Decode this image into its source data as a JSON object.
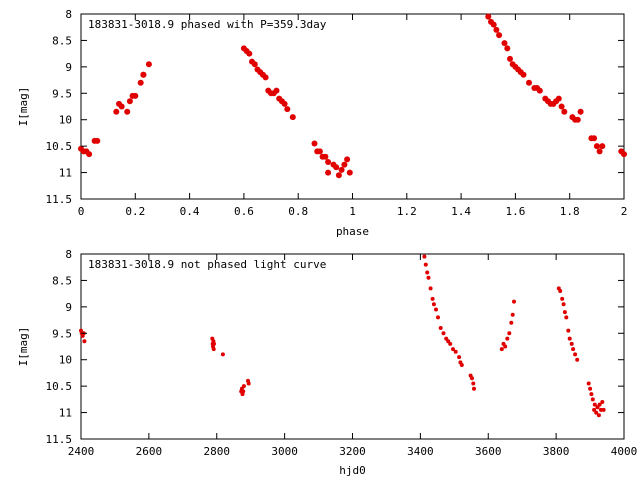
{
  "chart_data": [
    {
      "type": "scatter",
      "title": "183831-3018.9 phased with P=359.3day",
      "xlabel": "phase",
      "ylabel": "I[mag]",
      "xlim": [
        0,
        2
      ],
      "ylim": [
        11.5,
        8
      ],
      "y_inverted": true,
      "grid": false,
      "legend": "none",
      "marker_color": "#e00000",
      "xticks": [
        0,
        0.2,
        0.4,
        0.6,
        0.8,
        1,
        1.2,
        1.4,
        1.6,
        1.8,
        2
      ],
      "xtick_labels": [
        "0",
        "0.2",
        "0.4",
        "0.6",
        "0.8",
        "1",
        "1.2",
        "1.4",
        "1.6",
        "1.8",
        "2"
      ],
      "yticks": [
        8,
        8.5,
        9,
        9.5,
        10,
        10.5,
        11,
        11.5
      ],
      "ytick_labels": [
        "8",
        "8.5",
        "9",
        "9.5",
        "10",
        "10.5",
        "11",
        "11.5"
      ],
      "x": [
        0.0,
        0.01,
        0.02,
        0.03,
        0.05,
        0.06,
        0.13,
        0.14,
        0.15,
        0.17,
        0.18,
        0.19,
        0.2,
        0.22,
        0.23,
        0.23,
        0.25,
        0.6,
        0.61,
        0.62,
        0.63,
        0.64,
        0.65,
        0.66,
        0.67,
        0.68,
        0.69,
        0.7,
        0.71,
        0.72,
        0.73,
        0.74,
        0.75,
        0.76,
        0.78,
        0.86,
        0.87,
        0.88,
        0.89,
        0.9,
        0.91,
        0.91,
        0.93,
        0.94,
        0.95,
        0.96,
        0.97,
        0.98,
        0.99,
        1.5,
        1.51,
        1.52,
        1.53,
        1.54,
        1.56,
        1.57,
        1.58,
        1.59,
        1.6,
        1.61,
        1.62,
        1.63,
        1.65,
        1.67,
        1.68,
        1.69,
        1.71,
        1.72,
        1.73,
        1.74,
        1.75,
        1.76,
        1.77,
        1.78,
        1.81,
        1.82,
        1.83,
        1.84,
        1.88,
        1.89,
        1.9,
        1.91,
        1.92,
        1.99,
        2.0
      ],
      "y": [
        10.55,
        10.6,
        10.6,
        10.65,
        10.4,
        10.4,
        9.85,
        9.7,
        9.75,
        9.85,
        9.65,
        9.55,
        9.55,
        9.3,
        9.15,
        9.15,
        8.95,
        8.65,
        8.7,
        8.75,
        8.9,
        8.95,
        9.05,
        9.1,
        9.15,
        9.2,
        9.45,
        9.5,
        9.5,
        9.45,
        9.6,
        9.65,
        9.7,
        9.8,
        9.95,
        10.45,
        10.6,
        10.6,
        10.7,
        10.7,
        10.8,
        11.0,
        10.85,
        10.9,
        11.05,
        10.95,
        10.85,
        10.75,
        11.0,
        8.05,
        8.15,
        8.2,
        8.3,
        8.4,
        8.55,
        8.65,
        8.85,
        8.95,
        9.0,
        9.05,
        9.1,
        9.15,
        9.3,
        9.4,
        9.4,
        9.45,
        9.6,
        9.65,
        9.7,
        9.7,
        9.65,
        9.6,
        9.75,
        9.85,
        9.95,
        10.0,
        10.0,
        9.85,
        10.35,
        10.35,
        10.5,
        10.6,
        10.5,
        10.6,
        10.65
      ]
    },
    {
      "type": "scatter",
      "title": "183831-3018.9 not phased light curve",
      "xlabel": "hjd0",
      "ylabel": "I[mag]",
      "xlim": [
        2400,
        4000
      ],
      "ylim": [
        11.5,
        8
      ],
      "y_inverted": true,
      "grid": false,
      "legend": "none",
      "marker_color": "#e00000",
      "xticks": [
        2400,
        2600,
        2800,
        3000,
        3200,
        3400,
        3600,
        3800,
        4000
      ],
      "xtick_labels": [
        "2400",
        "2600",
        "2800",
        "3000",
        "3200",
        "3400",
        "3600",
        "3800",
        "4000"
      ],
      "yticks": [
        8,
        8.5,
        9,
        9.5,
        10,
        10.5,
        11,
        11.5
      ],
      "ytick_labels": [
        "8",
        "8.5",
        "9",
        "9.5",
        "10",
        "10.5",
        "11",
        "11.5"
      ],
      "x": [
        2400,
        2402,
        2405,
        2408,
        2410,
        2787,
        2788,
        2789,
        2790,
        2791,
        2792,
        2818,
        2872,
        2874,
        2876,
        2878,
        2880,
        2892,
        2894,
        3412,
        3416,
        3420,
        3424,
        3430,
        3436,
        3440,
        3446,
        3452,
        3460,
        3468,
        3476,
        3482,
        3488,
        3496,
        3504,
        3514,
        3518,
        3522,
        3548,
        3552,
        3556,
        3558,
        3640,
        3645,
        3650,
        3656,
        3662,
        3668,
        3672,
        3676,
        3808,
        3812,
        3818,
        3822,
        3826,
        3830,
        3836,
        3840,
        3846,
        3850,
        3856,
        3862,
        3896,
        3900,
        3904,
        3908,
        3912,
        3914,
        3918,
        3922,
        3926,
        3928,
        3932,
        3936,
        3940
      ],
      "y": [
        9.45,
        9.5,
        9.55,
        9.5,
        9.65,
        9.6,
        9.7,
        9.75,
        9.65,
        9.8,
        9.7,
        9.9,
        10.6,
        10.55,
        10.65,
        10.6,
        10.5,
        10.4,
        10.45,
        8.05,
        8.2,
        8.35,
        8.45,
        8.65,
        8.85,
        8.95,
        9.05,
        9.2,
        9.4,
        9.5,
        9.6,
        9.65,
        9.7,
        9.8,
        9.85,
        9.95,
        10.05,
        10.1,
        10.3,
        10.35,
        10.45,
        10.55,
        9.8,
        9.7,
        9.75,
        9.6,
        9.5,
        9.3,
        9.15,
        8.9,
        8.65,
        8.7,
        8.85,
        8.95,
        9.1,
        9.2,
        9.45,
        9.6,
        9.7,
        9.8,
        9.9,
        10.0,
        10.45,
        10.55,
        10.65,
        10.75,
        10.95,
        10.85,
        11.0,
        10.9,
        11.05,
        10.85,
        10.95,
        10.8,
        10.95
      ]
    }
  ]
}
